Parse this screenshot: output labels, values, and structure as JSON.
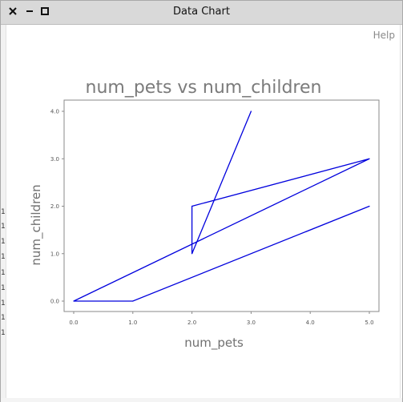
{
  "window": {
    "title": "Data Chart",
    "help_label": "Help"
  },
  "stray_glyphs": [
    "1",
    "1",
    "1",
    "1",
    "1",
    "1",
    "1",
    "1",
    "1"
  ],
  "chart_data": {
    "type": "line",
    "title": "num_pets vs num_children",
    "xlabel": "num_pets",
    "ylabel": "num_children",
    "xlim": [
      0.0,
      5.0
    ],
    "ylim": [
      0.0,
      4.0
    ],
    "x_ticks": [
      "0.0",
      "1.0",
      "2.0",
      "3.0",
      "4.0",
      "5.0"
    ],
    "y_ticks": [
      "0.0",
      "1.0",
      "2.0",
      "3.0",
      "4.0"
    ],
    "grid": false,
    "series": [
      {
        "color": "#0000dd",
        "points": [
          [
            3,
            4
          ],
          [
            2,
            1
          ],
          [
            2,
            2
          ],
          [
            5,
            3
          ],
          [
            0,
            0
          ],
          [
            1,
            0
          ],
          [
            5,
            2
          ]
        ]
      }
    ]
  }
}
